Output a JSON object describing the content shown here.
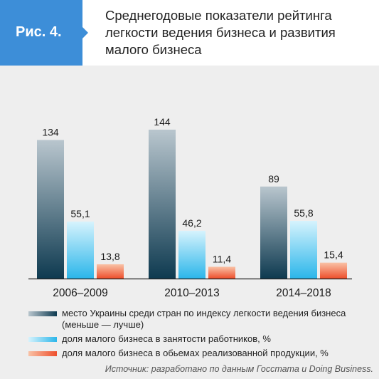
{
  "figure": {
    "label": "Рис. 4.",
    "title_lines": [
      "Среднегодовые показатели рейтинга",
      "легкости ведения бизнеса и развития",
      "малого бизнеса"
    ]
  },
  "chart_data": {
    "type": "bar",
    "categories": [
      "2006–2009",
      "2010–2013",
      "2014–2018"
    ],
    "series": [
      {
        "name": "место Украины среди стран по индексу легкости ведения бизнеса (меньше — лучше)",
        "values": [
          134,
          144,
          89
        ],
        "labels": [
          "134",
          "144",
          "89"
        ]
      },
      {
        "name": "доля малого бизнеса в занятости работников, %",
        "values": [
          55.1,
          46.2,
          55.8
        ],
        "labels": [
          "55,1",
          "46,2",
          "55,8"
        ]
      },
      {
        "name": "доля малого бизнеса в обьемах реализованной продукции, %",
        "values": [
          13.8,
          11.4,
          15.4
        ],
        "labels": [
          "13,8",
          "11,4",
          "15,4"
        ]
      }
    ],
    "ylim": [
      0,
      150
    ],
    "grid": false
  },
  "legend": {
    "items": [
      {
        "label": "место Украины среди стран по индексу легкости ведения бизнеса (меньше — лучше)",
        "color_top": "#b9c6ce",
        "color_bottom": "#0e3a50"
      },
      {
        "label": "доля малого бизнеса в занятости работников, %",
        "color_top": "#d6f3fd",
        "color_bottom": "#2bb6ea"
      },
      {
        "label": "доля малого бизнеса в обьемах реализованной продукции, %",
        "color_top": "#f9c2a6",
        "color_bottom": "#ee4f2c"
      }
    ]
  },
  "source": "Источник: разработано по данным Госстата и Doing Business.",
  "colors": {
    "badge": "#3d8ed8",
    "background": "#eeeeee"
  }
}
